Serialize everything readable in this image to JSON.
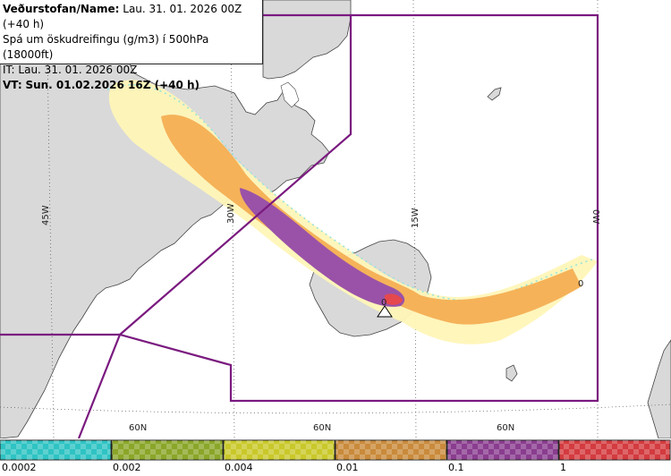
{
  "header": {
    "line1_label": "Veðurstofan/Name:",
    "line1_value": "Lau. 31. 01. 2026 00Z (+40 h)",
    "line2": "Spá um öskudreifingu (g/m3) í 500hPa (18000ft)",
    "line3": "IT: Lau. 31. 01. 2026 00Z",
    "line4_label": "VT:",
    "line4_value": "Sun. 01.02.2026 16Z (+40 h)"
  },
  "grid_labels": {
    "lon_45w": "45W",
    "lon_30w": "30W",
    "lon_15w": "15W",
    "lon_0w": "0W",
    "lat_a": "60N",
    "lat_b": "60N",
    "lat_c": "60N"
  },
  "plume_labels": {
    "zero_east": "0",
    "zero_source": "0"
  },
  "legend": {
    "ticks": [
      "0.0002",
      "0.002",
      "0.004",
      "0.01",
      "0.1",
      "1"
    ],
    "colors": [
      "#2fc3c3",
      "#8aa629",
      "#c9c82a",
      "#c98a3b",
      "#8a3d8f",
      "#d33b3f"
    ]
  },
  "colors": {
    "fir_boundary": "#7a1a7f",
    "land": "#d9d9d9",
    "sea": "#ffffff",
    "plume_low": "#fff2a8",
    "plume_mid": "#f5b259",
    "plume_high": "#9a52a8",
    "plume_max": "#e5484d"
  }
}
